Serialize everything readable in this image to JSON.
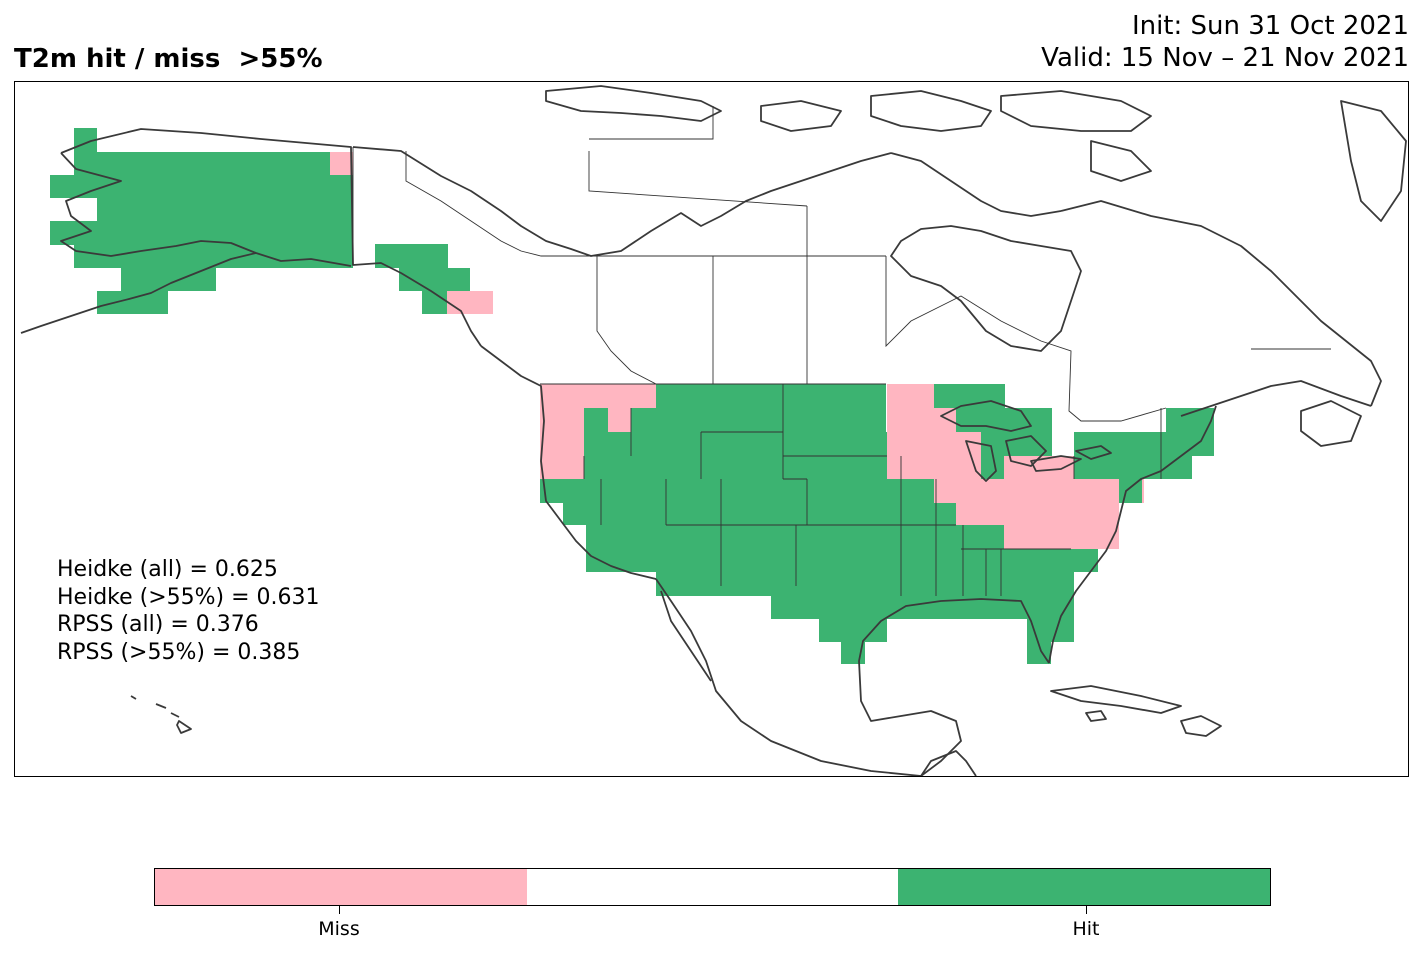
{
  "title": "T2m hit / miss  >55%",
  "init_label": "Init: Sun 31 Oct 2021",
  "valid_label": "Valid: 15 Nov – 21 Nov 2021",
  "stats": [
    "Heidke (all) = 0.625",
    "Heidke (>55%) = 0.631",
    "RPSS (all) = 0.376",
    "RPSS (>55%) = 0.385"
  ],
  "colors": {
    "miss": "#ffb6c1",
    "neutral": "#ffffff",
    "hit": "#3cb371",
    "coast": "#3a3a3a"
  },
  "colorbar": {
    "labels": [
      "Miss",
      "Hit"
    ]
  }
}
